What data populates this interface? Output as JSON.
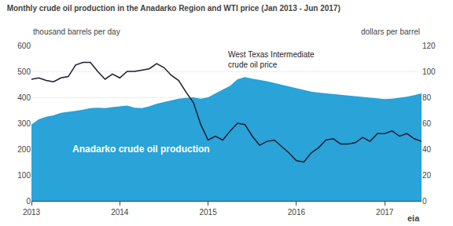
{
  "chart_data": {
    "type": "area",
    "title": "Monthly crude oil production in the Anadarko Region and WTI price (Jan 2013 - Jun 2017)",
    "ylabel": "thousand barrels per day",
    "y2label": "dollars per barrel",
    "categories": [
      "2013",
      null,
      null,
      null,
      null,
      null,
      null,
      null,
      null,
      null,
      null,
      null,
      "2014",
      null,
      null,
      null,
      null,
      null,
      null,
      null,
      null,
      null,
      null,
      null,
      "2015",
      null,
      null,
      null,
      null,
      null,
      null,
      null,
      null,
      null,
      null,
      null,
      "2016",
      null,
      null,
      null,
      null,
      null,
      null,
      null,
      null,
      null,
      null,
      null,
      "2017",
      null,
      null,
      null,
      null,
      null
    ],
    "series": [
      {
        "name": "Anadarko crude oil production",
        "type": "area",
        "color": "#29a3d8",
        "values": [
          295,
          315,
          325,
          330,
          340,
          345,
          348,
          352,
          358,
          360,
          358,
          362,
          365,
          368,
          360,
          358,
          365,
          375,
          382,
          388,
          395,
          398,
          400,
          395,
          400,
          415,
          430,
          445,
          470,
          478,
          472,
          468,
          462,
          455,
          448,
          442,
          435,
          428,
          422,
          418,
          415,
          412,
          410,
          408,
          405,
          400,
          398,
          395,
          393,
          395,
          398,
          402,
          408,
          415
        ]
      },
      {
        "name": "West Texas Intermediate\ncrude oil price",
        "type": "line",
        "color": "#1c1c2e",
        "axis": "y2",
        "values": [
          94,
          95,
          93,
          92,
          95,
          96,
          105,
          107,
          107,
          100,
          94,
          98,
          95,
          100,
          100,
          101,
          102,
          106,
          103,
          97,
          93,
          84,
          76,
          59,
          47,
          50,
          47,
          54,
          60,
          59,
          50,
          43,
          46,
          47,
          42,
          37,
          31,
          30,
          37,
          41,
          47,
          48,
          44,
          44,
          45,
          49,
          46,
          52,
          52,
          54,
          50,
          52,
          48,
          46
        ]
      }
    ],
    "ylim": [
      0,
      600
    ],
    "yticks": [
      0,
      100,
      200,
      300,
      400,
      500,
      600
    ],
    "y2lim": [
      0,
      120
    ],
    "y2ticks": [
      0,
      20,
      40,
      60,
      80,
      100,
      120
    ],
    "grid": true,
    "annotations": [
      "eia"
    ]
  }
}
